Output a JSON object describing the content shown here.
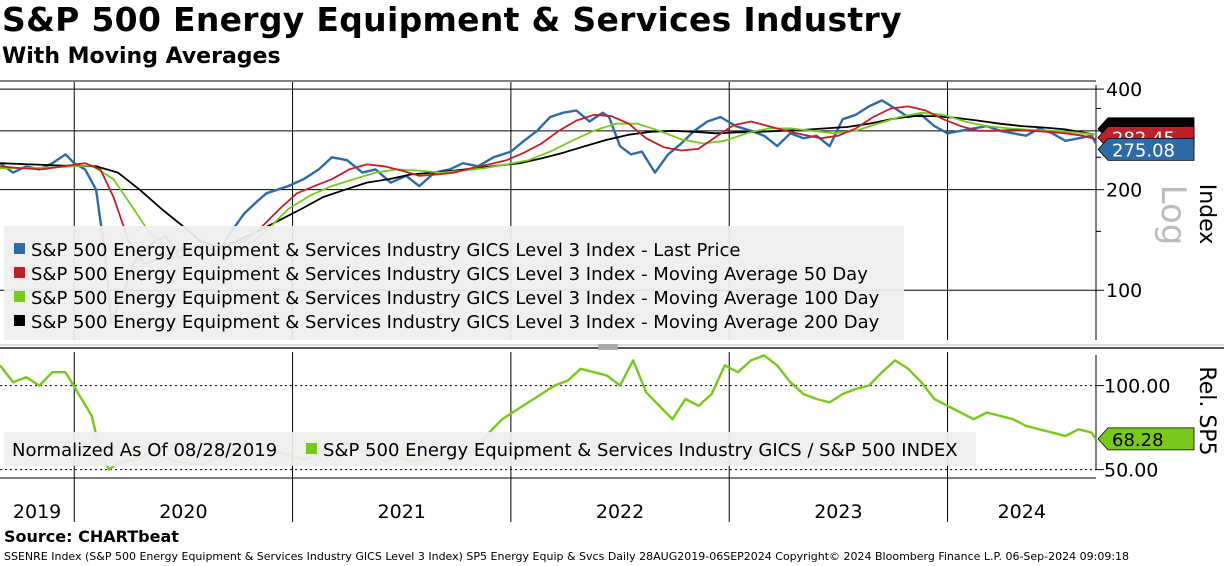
{
  "header": {
    "title": "S&P 500 Energy Equipment & Services Industry",
    "subtitle": "With Moving Averages"
  },
  "source": "Source: CHARTbeat",
  "footer": "SSENRE Index (S&P 500 Energy Equipment & Services Industry GICS Level 3 Index) SP5 Energy Equip & Svcs  Daily 28AUG2019-06SEP2024  Copyright© 2024 Bloomberg Finance L.P.  06-Sep-2024 09:09:18",
  "colors": {
    "last_price": "#2e6aa6",
    "ma50": "#c0202a",
    "ma100": "#7ac81e",
    "ma200": "#000000",
    "relative": "#7ac81e",
    "relative_faded": "#bde08f"
  },
  "chart_data": [
    {
      "type": "line",
      "scale": "log",
      "ylabel": "Index",
      "scale_label": "Log",
      "ylim": [
        70,
        420
      ],
      "yticks": [
        {
          "value": 400,
          "label": "400"
        },
        {
          "value": 200,
          "label": "200"
        },
        {
          "value": 100,
          "label": "100"
        }
      ],
      "x_labels": [
        "2019",
        "2020",
        "2021",
        "2022",
        "2023",
        "2024"
      ],
      "x_start": 2019.66,
      "x_end": 2024.68,
      "price_tags": [
        {
          "series": "ma200",
          "label": "",
          "value": 292
        },
        {
          "series": "ma50",
          "label": "282.45",
          "value": 282.45
        },
        {
          "series": "last_price",
          "label": "275.08",
          "value": 275.08
        }
      ],
      "series": [
        {
          "key": "last_price",
          "name": "S&P 500 Energy Equipment & Services Industry GICS Level 3 Index - Last Price",
          "x": [
            2019.66,
            2019.72,
            2019.78,
            2019.84,
            2019.9,
            2019.96,
            2020.0,
            2020.05,
            2020.1,
            2020.14,
            2020.17,
            2020.2,
            2020.23,
            2020.27,
            2020.31,
            2020.37,
            2020.42,
            2020.48,
            2020.55,
            2020.6,
            2020.66,
            2020.72,
            2020.78,
            2020.84,
            2020.88,
            2020.93,
            2020.98,
            2021.05,
            2021.12,
            2021.18,
            2021.25,
            2021.32,
            2021.38,
            2021.45,
            2021.52,
            2021.58,
            2021.65,
            2021.72,
            2021.78,
            2021.85,
            2021.92,
            2022.0,
            2022.06,
            2022.12,
            2022.18,
            2022.24,
            2022.3,
            2022.36,
            2022.42,
            2022.45,
            2022.5,
            2022.55,
            2022.6,
            2022.66,
            2022.72,
            2022.78,
            2022.84,
            2022.9,
            2022.96,
            2023.03,
            2023.1,
            2023.16,
            2023.22,
            2023.28,
            2023.34,
            2023.4,
            2023.46,
            2023.52,
            2023.58,
            2023.64,
            2023.7,
            2023.76,
            2023.82,
            2023.88,
            2023.94,
            2024.0,
            2024.06,
            2024.12,
            2024.18,
            2024.24,
            2024.3,
            2024.36,
            2024.42,
            2024.48,
            2024.54,
            2024.6,
            2024.66,
            2024.68
          ],
          "y": [
            240,
            225,
            235,
            230,
            240,
            255,
            240,
            230,
            200,
            130,
            80,
            90,
            100,
            120,
            130,
            140,
            145,
            125,
            130,
            135,
            130,
            150,
            170,
            185,
            195,
            200,
            205,
            215,
            230,
            250,
            245,
            225,
            230,
            210,
            220,
            205,
            225,
            230,
            240,
            235,
            250,
            260,
            280,
            300,
            330,
            340,
            345,
            320,
            340,
            330,
            270,
            255,
            260,
            225,
            255,
            275,
            300,
            320,
            330,
            310,
            300,
            290,
            270,
            295,
            285,
            290,
            270,
            325,
            335,
            355,
            370,
            350,
            330,
            335,
            310,
            295,
            300,
            305,
            310,
            300,
            295,
            290,
            305,
            295,
            280,
            285,
            290,
            275
          ]
        },
        {
          "key": "ma50",
          "name": "S&P 500 Energy Equipment & Services Industry GICS Level 3 Index - Moving Average 50 Day",
          "x": [
            2019.66,
            2019.75,
            2019.85,
            2019.95,
            2020.05,
            2020.12,
            2020.18,
            2020.25,
            2020.32,
            2020.4,
            2020.48,
            2020.55,
            2020.62,
            2020.7,
            2020.78,
            2020.86,
            2020.94,
            2021.02,
            2021.1,
            2021.18,
            2021.26,
            2021.34,
            2021.42,
            2021.5,
            2021.58,
            2021.66,
            2021.74,
            2021.82,
            2021.9,
            2021.98,
            2022.06,
            2022.14,
            2022.22,
            2022.3,
            2022.38,
            2022.46,
            2022.54,
            2022.62,
            2022.7,
            2022.78,
            2022.86,
            2022.94,
            2023.02,
            2023.1,
            2023.18,
            2023.26,
            2023.34,
            2023.42,
            2023.5,
            2023.58,
            2023.66,
            2023.74,
            2023.82,
            2023.9,
            2023.98,
            2024.06,
            2024.14,
            2024.22,
            2024.3,
            2024.38,
            2024.46,
            2024.54,
            2024.62,
            2024.68
          ],
          "y": [
            235,
            232,
            230,
            235,
            240,
            230,
            190,
            140,
            120,
            125,
            132,
            135,
            137,
            135,
            140,
            155,
            175,
            195,
            205,
            215,
            230,
            238,
            235,
            228,
            220,
            222,
            225,
            232,
            238,
            245,
            258,
            275,
            300,
            322,
            335,
            332,
            315,
            285,
            268,
            262,
            265,
            288,
            312,
            320,
            310,
            300,
            292,
            285,
            290,
            305,
            330,
            350,
            355,
            345,
            325,
            310,
            300,
            300,
            302,
            300,
            298,
            295,
            290,
            283
          ]
        },
        {
          "key": "ma100",
          "name": "S&P 500 Energy Equipment & Services Industry GICS Level 3 Index - Moving Average 100 Day",
          "x": [
            2019.66,
            2019.8,
            2019.95,
            2020.08,
            2020.18,
            2020.26,
            2020.34,
            2020.42,
            2020.5,
            2020.58,
            2020.66,
            2020.74,
            2020.82,
            2020.9,
            2020.98,
            2021.08,
            2021.18,
            2021.28,
            2021.38,
            2021.48,
            2021.58,
            2021.68,
            2021.78,
            2021.88,
            2021.98,
            2022.08,
            2022.18,
            2022.28,
            2022.38,
            2022.48,
            2022.58,
            2022.68,
            2022.78,
            2022.88,
            2022.98,
            2023.08,
            2023.18,
            2023.28,
            2023.38,
            2023.48,
            2023.58,
            2023.68,
            2023.78,
            2023.88,
            2023.98,
            2024.08,
            2024.18,
            2024.28,
            2024.38,
            2024.48,
            2024.58,
            2024.68
          ],
          "y": [
            232,
            232,
            234,
            236,
            215,
            180,
            150,
            135,
            130,
            131,
            132,
            132,
            140,
            155,
            175,
            192,
            205,
            215,
            225,
            230,
            228,
            225,
            228,
            232,
            238,
            245,
            260,
            280,
            300,
            315,
            315,
            300,
            283,
            275,
            280,
            295,
            305,
            305,
            300,
            295,
            300,
            315,
            330,
            340,
            335,
            320,
            310,
            305,
            302,
            300,
            297,
            292
          ]
        },
        {
          "key": "ma200",
          "name": "S&P 500 Energy Equipment & Services Industry GICS Level 3 Index - Moving Average 200 Day",
          "x": [
            2019.66,
            2019.8,
            2019.95,
            2020.1,
            2020.2,
            2020.3,
            2020.4,
            2020.5,
            2020.58,
            2020.66,
            2020.74,
            2020.84,
            2020.94,
            2021.04,
            2021.14,
            2021.24,
            2021.34,
            2021.44,
            2021.54,
            2021.64,
            2021.74,
            2021.84,
            2021.94,
            2022.04,
            2022.14,
            2022.24,
            2022.34,
            2022.44,
            2022.54,
            2022.64,
            2022.74,
            2022.84,
            2022.94,
            2023.04,
            2023.14,
            2023.24,
            2023.34,
            2023.44,
            2023.54,
            2023.64,
            2023.74,
            2023.84,
            2023.94,
            2024.04,
            2024.14,
            2024.24,
            2024.34,
            2024.44,
            2024.54,
            2024.64,
            2024.68
          ],
          "y": [
            240,
            238,
            236,
            235,
            225,
            200,
            175,
            155,
            140,
            135,
            140,
            150,
            162,
            175,
            190,
            200,
            210,
            215,
            222,
            225,
            228,
            232,
            236,
            240,
            248,
            258,
            270,
            282,
            292,
            298,
            300,
            298,
            295,
            297,
            298,
            300,
            302,
            305,
            308,
            315,
            325,
            332,
            332,
            328,
            322,
            315,
            310,
            307,
            303,
            295,
            292
          ]
        }
      ]
    },
    {
      "type": "line",
      "ylabel": "Rel. SP5",
      "ylim": [
        45,
        120
      ],
      "yticks": [
        {
          "value": 100,
          "label": "100.00"
        },
        {
          "value": 50,
          "label": "50.00"
        }
      ],
      "legend_label": "Normalized As Of 08/28/2019",
      "price_tags": [
        {
          "series": "relative",
          "label": "68.28",
          "value": 68.28
        }
      ],
      "series": [
        {
          "key": "relative",
          "name": "S&P 500 Energy Equipment & Services Industry GICS / S&P 500 INDEX",
          "x": [
            2019.66,
            2019.72,
            2019.78,
            2019.84,
            2019.9,
            2019.96,
            2020.02,
            2020.08,
            2020.12,
            2020.16,
            2020.19,
            2020.23,
            2020.28,
            2020.34,
            2020.4,
            2020.46,
            2020.52,
            2020.58,
            2020.64,
            2020.7,
            2020.76,
            2020.82,
            2020.88,
            2020.94,
            2021.0,
            2021.06,
            2021.12,
            2021.18,
            2021.24,
            2021.3,
            2021.36,
            2021.42,
            2021.48,
            2021.54,
            2021.6,
            2021.66,
            2021.72,
            2021.78,
            2021.84,
            2021.9,
            2021.96,
            2022.02,
            2022.08,
            2022.14,
            2022.2,
            2022.26,
            2022.32,
            2022.38,
            2022.44,
            2022.5,
            2022.56,
            2022.62,
            2022.68,
            2022.74,
            2022.8,
            2022.86,
            2022.92,
            2022.98,
            2023.04,
            2023.1,
            2023.16,
            2023.22,
            2023.28,
            2023.34,
            2023.4,
            2023.46,
            2023.52,
            2023.58,
            2023.64,
            2023.7,
            2023.76,
            2023.82,
            2023.88,
            2023.94,
            2024.0,
            2024.06,
            2024.12,
            2024.18,
            2024.24,
            2024.3,
            2024.36,
            2024.42,
            2024.48,
            2024.54,
            2024.6,
            2024.66,
            2024.68
          ],
          "y": [
            112,
            102,
            105,
            100,
            108,
            108,
            95,
            82,
            60,
            50,
            53,
            55,
            56,
            60,
            58,
            55,
            54,
            53,
            56,
            60,
            64,
            66,
            62,
            60,
            58,
            56,
            60,
            64,
            66,
            62,
            60,
            55,
            58,
            55,
            56,
            57,
            60,
            58,
            62,
            72,
            80,
            85,
            90,
            95,
            100,
            103,
            110,
            108,
            106,
            100,
            115,
            96,
            88,
            80,
            92,
            88,
            95,
            112,
            108,
            115,
            118,
            112,
            102,
            95,
            92,
            90,
            95,
            98,
            100,
            108,
            115,
            110,
            102,
            92,
            88,
            84,
            80,
            84,
            82,
            80,
            76,
            74,
            72,
            70,
            74,
            72,
            68
          ]
        }
      ]
    }
  ]
}
